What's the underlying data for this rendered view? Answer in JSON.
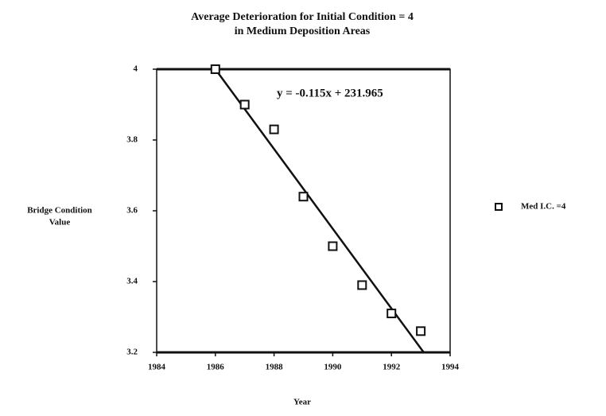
{
  "chart_data": {
    "type": "scatter",
    "title": [
      "Average Deterioration for Initial Condition = 4",
      "in Medium Deposition Areas"
    ],
    "x_label": "Year",
    "y_label": [
      "Bridge Condition",
      "Value"
    ],
    "xlim": [
      1984,
      1994
    ],
    "xticks": [
      1984,
      1986,
      1988,
      1990,
      1992,
      1994
    ],
    "ylim": [
      3.2,
      4
    ],
    "yticks": [
      3.2,
      3.4,
      3.6,
      3.8,
      4
    ],
    "series": [
      {
        "name": "Med I.C. =4",
        "color": "#111111",
        "x": [
          1986,
          1987,
          1988,
          1989,
          1990,
          1991,
          1992,
          1993
        ],
        "values": [
          4.0,
          3.9,
          3.83,
          3.64,
          3.5,
          3.39,
          3.31,
          3.26
        ]
      }
    ],
    "trendline": {
      "label": "y =  -0.115x + 231.965",
      "x": [
        1986,
        1993.1
      ],
      "y": [
        4.0,
        3.2
      ]
    },
    "legend": "right"
  }
}
